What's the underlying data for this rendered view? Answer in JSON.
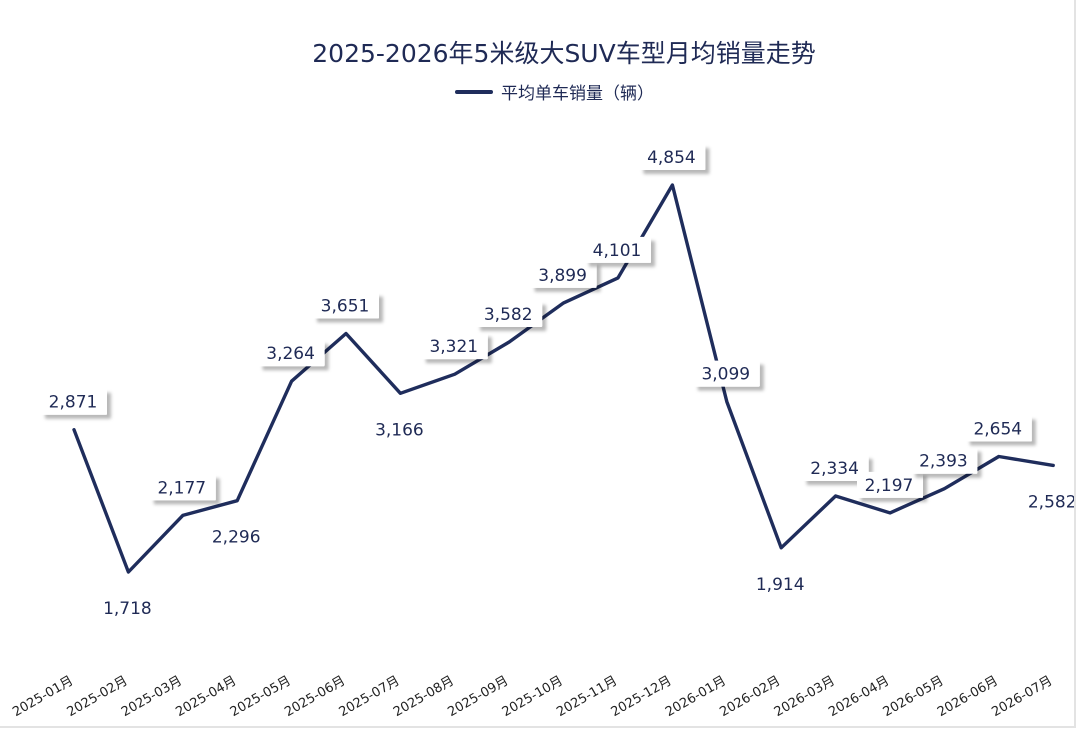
{
  "chart_data": {
    "type": "line",
    "title": "2025-2026年5米级大SUV车型月均销量走势",
    "legend": "top-center",
    "grid": false,
    "categories": [
      "2025-01月",
      "2025-02月",
      "2025-03月",
      "2025-04月",
      "2025-05月",
      "2025-06月",
      "2025-07月",
      "2025-08月",
      "2025-09月",
      "2025-10月",
      "2025-11月",
      "2025-12月",
      "2026-01月",
      "2026-02月",
      "2026-03月",
      "2026-04月",
      "2026-05月",
      "2026-06月",
      "2026-07月"
    ],
    "series": [
      {
        "name": "平均单车销量（辆）",
        "values": [
          2871,
          1718,
          2177,
          2296,
          3264,
          3651,
          3166,
          3321,
          3582,
          3899,
          4101,
          4854,
          3099,
          1914,
          2334,
          2197,
          2393,
          2654,
          2582
        ],
        "labels": [
          "2,871",
          "1,718",
          "2,177",
          "2,296",
          "3,264",
          "3,651",
          "3,166",
          "3,321",
          "3,582",
          "3,899",
          "4,101",
          "4,854",
          "3,099",
          "1,914",
          "2,334",
          "2,197",
          "2,393",
          "2,654",
          "2,582"
        ],
        "color": "#1f2d5c"
      }
    ]
  }
}
